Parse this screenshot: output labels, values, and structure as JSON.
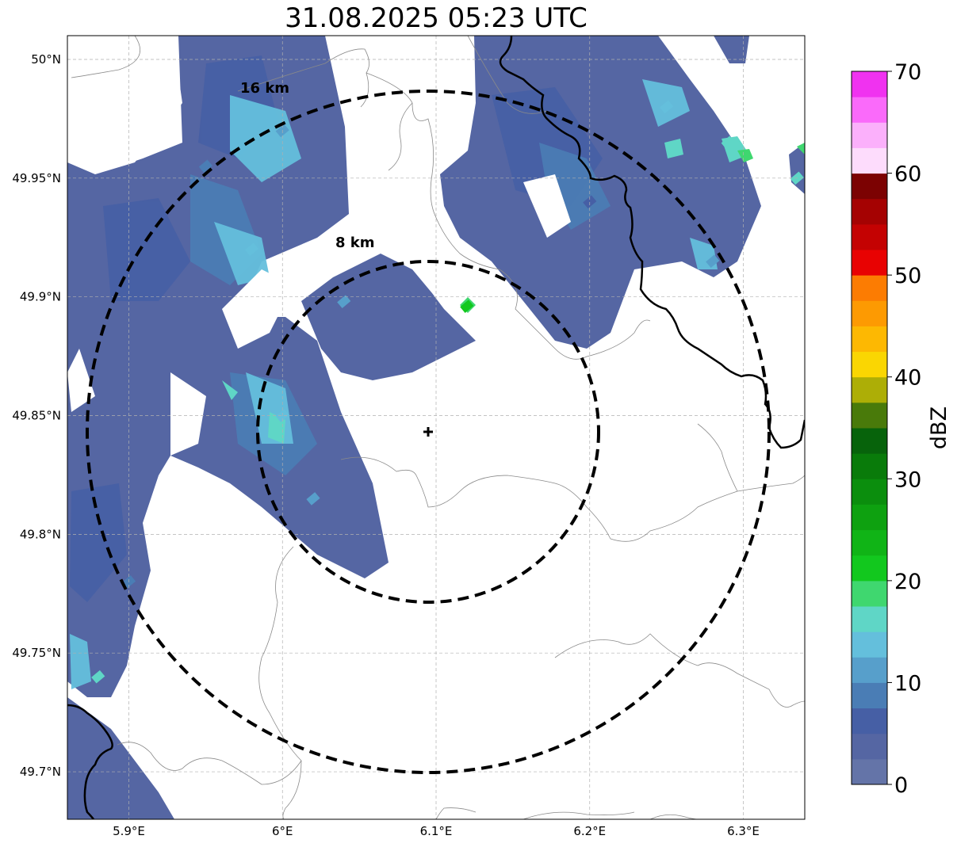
{
  "title": "31.08.2025 05:23 UTC",
  "map": {
    "lon_range": [
      5.86,
      6.34
    ],
    "lat_range": [
      49.68,
      50.01
    ],
    "lon_ticks": [
      {
        "value": 5.9,
        "label": "5.9°E"
      },
      {
        "value": 6.0,
        "label": "6°E"
      },
      {
        "value": 6.1,
        "label": "6.1°E"
      },
      {
        "value": 6.2,
        "label": "6.2°E"
      },
      {
        "value": 6.3,
        "label": "6.3°E"
      }
    ],
    "lat_ticks": [
      {
        "value": 50.0,
        "label": "50°N"
      },
      {
        "value": 49.95,
        "label": "49.95°N"
      },
      {
        "value": 49.9,
        "label": "49.9°N"
      },
      {
        "value": 49.85,
        "label": "49.85°N"
      },
      {
        "value": 49.8,
        "label": "49.8°N"
      },
      {
        "value": 49.75,
        "label": "49.75°N"
      },
      {
        "value": 49.7,
        "label": "49.7°N"
      }
    ],
    "grid": true,
    "radar_site": {
      "lon": 6.095,
      "lat": 49.843
    },
    "range_rings": [
      {
        "radius_km": 8,
        "label": "8 km"
      },
      {
        "radius_km": 16,
        "label": "16 km"
      }
    ],
    "colors": {
      "border": "#000000",
      "admin_lines": "#888888",
      "grid": "#b0b0b0"
    }
  },
  "colorbar": {
    "label": "dBZ",
    "min": 0,
    "max": 70,
    "ticks": [
      {
        "value": 0,
        "label": "0"
      },
      {
        "value": 10,
        "label": "10"
      },
      {
        "value": 20,
        "label": "20"
      },
      {
        "value": 30,
        "label": "30"
      },
      {
        "value": 40,
        "label": "40"
      },
      {
        "value": 50,
        "label": "50"
      },
      {
        "value": 60,
        "label": "60"
      },
      {
        "value": 70,
        "label": "70"
      }
    ],
    "colors": [
      "#6474a8",
      "#5566a3",
      "#465fa5",
      "#4a7db5",
      "#579fcb",
      "#64bfdc",
      "#5fd6c6",
      "#3fd76f",
      "#12c81e",
      "#10b416",
      "#0ea110",
      "#0b8e0d",
      "#097b0a",
      "#07630b",
      "#497a0a",
      "#adae06",
      "#fad602",
      "#fdb802",
      "#fd9a02",
      "#fc7c02",
      "#e80202",
      "#c40202",
      "#a50202",
      "#7c0202",
      "#fddcfc",
      "#fbb0fb",
      "#fa6afa",
      "#f032f0"
    ]
  },
  "precip_cells": [
    {
      "lon": 5.95,
      "lat": 49.955,
      "dbz": 9
    },
    {
      "lon": 6.0,
      "lat": 49.97,
      "dbz": 11
    },
    {
      "lon": 5.98,
      "lat": 49.92,
      "dbz": 13
    },
    {
      "lon": 6.04,
      "lat": 49.898,
      "dbz": 12
    },
    {
      "lon": 6.0,
      "lat": 49.85,
      "dbz": 14
    },
    {
      "lon": 6.02,
      "lat": 49.815,
      "dbz": 12
    },
    {
      "lon": 5.9,
      "lat": 49.78,
      "dbz": 8
    },
    {
      "lon": 5.88,
      "lat": 49.74,
      "dbz": 15
    },
    {
      "lon": 6.12,
      "lat": 49.896,
      "dbz": 20
    },
    {
      "lon": 6.2,
      "lat": 49.94,
      "dbz": 7
    },
    {
      "lon": 6.25,
      "lat": 49.98,
      "dbz": 14
    },
    {
      "lon": 6.29,
      "lat": 49.965,
      "dbz": 17
    },
    {
      "lon": 6.28,
      "lat": 49.915,
      "dbz": 12
    },
    {
      "lon": 6.335,
      "lat": 49.95,
      "dbz": 16
    }
  ]
}
